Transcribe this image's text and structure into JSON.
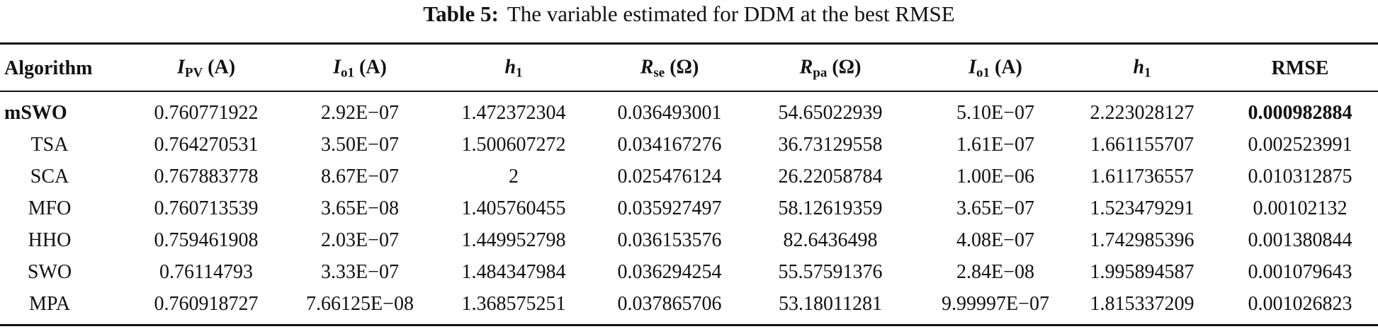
{
  "caption": {
    "label": "Table 5:",
    "text": "The variable estimated for DDM at the best RMSE"
  },
  "table": {
    "header": [
      {
        "main": "Algorithm"
      },
      {
        "main": "I",
        "sub": "PV",
        "unit": "(A)"
      },
      {
        "main": "I",
        "sub": "o1",
        "unit": "(A)"
      },
      {
        "main": "h",
        "sub": "1"
      },
      {
        "main": "R",
        "sub": "se",
        "unit": "(Ω)"
      },
      {
        "main": "R",
        "sub": "pa",
        "unit": "(Ω)"
      },
      {
        "main": "I",
        "sub": "o1",
        "unit": "(A)"
      },
      {
        "main": "h",
        "sub": "1"
      },
      {
        "main": "RMSE"
      }
    ],
    "rows": [
      [
        "mSWO",
        "0.760771922",
        "2.92E−07",
        "1.472372304",
        "0.036493001",
        "54.65022939",
        "5.10E−07",
        "2.223028127",
        "0.000982884"
      ],
      [
        "TSA",
        "0.764270531",
        "3.50E−07",
        "1.500607272",
        "0.034167276",
        "36.73129558",
        "1.61E−07",
        "1.661155707",
        "0.002523991"
      ],
      [
        "SCA",
        "0.767883778",
        "8.67E−07",
        "2",
        "0.025476124",
        "26.22058784",
        "1.00E−06",
        "1.611736557",
        "0.010312875"
      ],
      [
        "MFO",
        "0.760713539",
        "3.65E−08",
        "1.405760455",
        "0.035927497",
        "58.12619359",
        "3.65E−07",
        "1.523479291",
        "0.00102132"
      ],
      [
        "HHO",
        "0.759461908",
        "2.03E−07",
        "1.449952798",
        "0.036153576",
        "82.6436498",
        "4.08E−07",
        "1.742985396",
        "0.001380844"
      ],
      [
        "SWO",
        "0.76114793",
        "3.33E−07",
        "1.484347984",
        "0.036294254",
        "55.57591376",
        "2.84E−08",
        "1.995894587",
        "0.001079643"
      ],
      [
        "MPA",
        "0.760918727",
        "7.66125E−08",
        "1.368575251",
        "0.037865706",
        "53.18011281",
        "9.99997E−07",
        "1.815337209",
        "0.001026823"
      ]
    ]
  }
}
